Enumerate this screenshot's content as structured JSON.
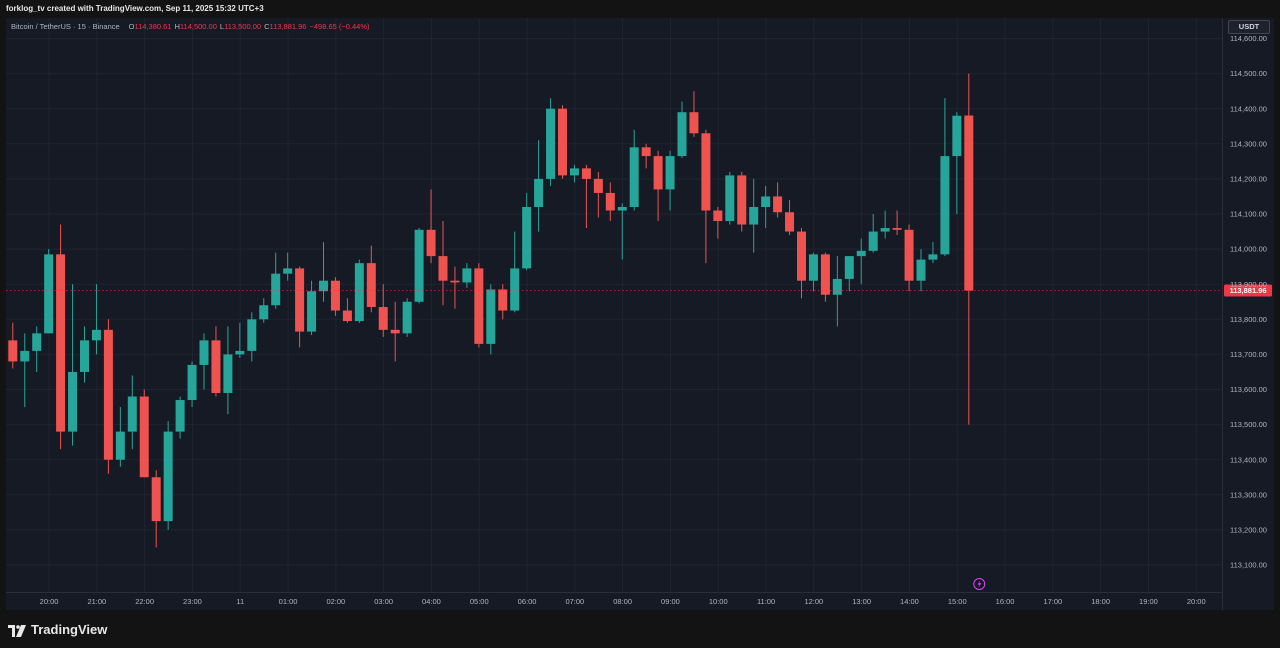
{
  "header": {
    "creator": "forklog_tv created with TradingView.com, Sep 11, 2025 15:32 UTC+3"
  },
  "legend": {
    "symbol": "Bitcoin / TetherUS · 15 · Binance",
    "o_label": "O",
    "o_value": "114,380.61",
    "h_label": "H",
    "h_value": "114,500.00",
    "l_label": "L",
    "l_value": "113,500.00",
    "c_label": "C",
    "c_value": "113,881.96",
    "change": "−498.65 (−0.44%)"
  },
  "currency_label": "USDT",
  "footer": {
    "brand": "TradingView",
    "logo_icon": "tradingview-logo-icon"
  },
  "colors": {
    "up": "#26a69a",
    "down": "#ef5350",
    "background": "#161a25",
    "grid": "#1f2430",
    "text": "#b2b5be",
    "last_price": "#f23645",
    "event_marker": "#e040fb"
  },
  "chart_data": {
    "type": "candlestick",
    "title": "Bitcoin / TetherUS · 15 · Binance",
    "interval": "15",
    "grid": true,
    "y_axis_side": "right",
    "ylim": [
      113050,
      114640
    ],
    "y_ticks": [
      113100,
      113200,
      113300,
      113400,
      113500,
      113600,
      113700,
      113800,
      113900,
      114000,
      114100,
      114200,
      114300,
      114400,
      114500,
      114600
    ],
    "y_tick_labels": [
      "113,100.00",
      "113,200.00",
      "113,300.00",
      "113,400.00",
      "113,500.00",
      "113,600.00",
      "113,700.00",
      "113,800.00",
      "113,900.00",
      "114,000.00",
      "114,100.00",
      "114,200.00",
      "114,300.00",
      "114,400.00",
      "114,500.00",
      "114,600.00"
    ],
    "x_ticks": [
      {
        "label": "20:00",
        "index": 3
      },
      {
        "label": "21:00",
        "index": 7
      },
      {
        "label": "22:00",
        "index": 11
      },
      {
        "label": "23:00",
        "index": 15
      },
      {
        "label": "11",
        "index": 19
      },
      {
        "label": "01:00",
        "index": 23
      },
      {
        "label": "02:00",
        "index": 27
      },
      {
        "label": "03:00",
        "index": 31
      },
      {
        "label": "04:00",
        "index": 35
      },
      {
        "label": "05:00",
        "index": 39
      },
      {
        "label": "06:00",
        "index": 43
      },
      {
        "label": "07:00",
        "index": 47
      },
      {
        "label": "08:00",
        "index": 51
      },
      {
        "label": "09:00",
        "index": 55
      },
      {
        "label": "10:00",
        "index": 59
      },
      {
        "label": "11:00",
        "index": 63
      },
      {
        "label": "12:00",
        "index": 67
      },
      {
        "label": "13:00",
        "index": 71
      },
      {
        "label": "14:00",
        "index": 75
      },
      {
        "label": "15:00",
        "index": 79
      },
      {
        "label": "16:00",
        "index": 83
      },
      {
        "label": "17:00",
        "index": 87
      },
      {
        "label": "18:00",
        "index": 91
      },
      {
        "label": "19:00",
        "index": 95
      },
      {
        "label": "20:00",
        "index": 99
      }
    ],
    "x_slots": 101,
    "first_slot_offset": -0.5,
    "last_price": 113881.96,
    "last_price_label": "113,881.96",
    "event_marker_index": 81,
    "candles": [
      {
        "o": 113740,
        "h": 113790,
        "l": 113660,
        "c": 113680
      },
      {
        "o": 113680,
        "h": 113760,
        "l": 113550,
        "c": 113710
      },
      {
        "o": 113710,
        "h": 113780,
        "l": 113650,
        "c": 113760
      },
      {
        "o": 113760,
        "h": 114000,
        "l": 113760,
        "c": 113985
      },
      {
        "o": 113985,
        "h": 114070,
        "l": 113430,
        "c": 113480
      },
      {
        "o": 113480,
        "h": 113900,
        "l": 113440,
        "c": 113650
      },
      {
        "o": 113650,
        "h": 113780,
        "l": 113620,
        "c": 113740
      },
      {
        "o": 113740,
        "h": 113900,
        "l": 113700,
        "c": 113770
      },
      {
        "o": 113770,
        "h": 113800,
        "l": 113360,
        "c": 113400
      },
      {
        "o": 113400,
        "h": 113550,
        "l": 113380,
        "c": 113480
      },
      {
        "o": 113480,
        "h": 113640,
        "l": 113430,
        "c": 113580
      },
      {
        "o": 113580,
        "h": 113600,
        "l": 113350,
        "c": 113350
      },
      {
        "o": 113350,
        "h": 113370,
        "l": 113150,
        "c": 113225
      },
      {
        "o": 113225,
        "h": 113510,
        "l": 113200,
        "c": 113480
      },
      {
        "o": 113480,
        "h": 113580,
        "l": 113460,
        "c": 113570
      },
      {
        "o": 113570,
        "h": 113680,
        "l": 113550,
        "c": 113670
      },
      {
        "o": 113670,
        "h": 113760,
        "l": 113600,
        "c": 113740
      },
      {
        "o": 113740,
        "h": 113780,
        "l": 113580,
        "c": 113590
      },
      {
        "o": 113590,
        "h": 113780,
        "l": 113530,
        "c": 113700
      },
      {
        "o": 113700,
        "h": 113790,
        "l": 113690,
        "c": 113710
      },
      {
        "o": 113710,
        "h": 113820,
        "l": 113680,
        "c": 113800
      },
      {
        "o": 113800,
        "h": 113860,
        "l": 113790,
        "c": 113840
      },
      {
        "o": 113840,
        "h": 113990,
        "l": 113830,
        "c": 113930
      },
      {
        "o": 113930,
        "h": 113990,
        "l": 113910,
        "c": 113945
      },
      {
        "o": 113945,
        "h": 113950,
        "l": 113720,
        "c": 113765
      },
      {
        "o": 113765,
        "h": 113910,
        "l": 113755,
        "c": 113880
      },
      {
        "o": 113880,
        "h": 114020,
        "l": 113850,
        "c": 113910
      },
      {
        "o": 113910,
        "h": 113920,
        "l": 113810,
        "c": 113825
      },
      {
        "o": 113825,
        "h": 113860,
        "l": 113790,
        "c": 113795
      },
      {
        "o": 113795,
        "h": 113970,
        "l": 113790,
        "c": 113960
      },
      {
        "o": 113960,
        "h": 114010,
        "l": 113820,
        "c": 113835
      },
      {
        "o": 113835,
        "h": 113900,
        "l": 113750,
        "c": 113770
      },
      {
        "o": 113770,
        "h": 113850,
        "l": 113680,
        "c": 113760
      },
      {
        "o": 113760,
        "h": 113860,
        "l": 113750,
        "c": 113850
      },
      {
        "o": 113850,
        "h": 114060,
        "l": 113845,
        "c": 114055
      },
      {
        "o": 114055,
        "h": 114170,
        "l": 113960,
        "c": 113980
      },
      {
        "o": 113980,
        "h": 114080,
        "l": 113840,
        "c": 113910
      },
      {
        "o": 113910,
        "h": 113950,
        "l": 113830,
        "c": 113905
      },
      {
        "o": 113905,
        "h": 113960,
        "l": 113890,
        "c": 113945
      },
      {
        "o": 113945,
        "h": 113960,
        "l": 113720,
        "c": 113730
      },
      {
        "o": 113730,
        "h": 113900,
        "l": 113700,
        "c": 113885
      },
      {
        "o": 113885,
        "h": 113900,
        "l": 113800,
        "c": 113825
      },
      {
        "o": 113825,
        "h": 114050,
        "l": 113820,
        "c": 113945
      },
      {
        "o": 113945,
        "h": 114160,
        "l": 113940,
        "c": 114120
      },
      {
        "o": 114120,
        "h": 114310,
        "l": 114050,
        "c": 114200
      },
      {
        "o": 114200,
        "h": 114430,
        "l": 114180,
        "c": 114400
      },
      {
        "o": 114400,
        "h": 114410,
        "l": 114200,
        "c": 114210
      },
      {
        "o": 114210,
        "h": 114240,
        "l": 114190,
        "c": 114230
      },
      {
        "o": 114230,
        "h": 114240,
        "l": 114060,
        "c": 114200
      },
      {
        "o": 114200,
        "h": 114220,
        "l": 114090,
        "c": 114160
      },
      {
        "o": 114160,
        "h": 114190,
        "l": 114080,
        "c": 114110
      },
      {
        "o": 114110,
        "h": 114130,
        "l": 113970,
        "c": 114120
      },
      {
        "o": 114120,
        "h": 114340,
        "l": 114110,
        "c": 114290
      },
      {
        "o": 114290,
        "h": 114300,
        "l": 114230,
        "c": 114265
      },
      {
        "o": 114265,
        "h": 114280,
        "l": 114080,
        "c": 114170
      },
      {
        "o": 114170,
        "h": 114280,
        "l": 114110,
        "c": 114265
      },
      {
        "o": 114265,
        "h": 114420,
        "l": 114260,
        "c": 114390
      },
      {
        "o": 114390,
        "h": 114450,
        "l": 114320,
        "c": 114330
      },
      {
        "o": 114330,
        "h": 114340,
        "l": 113960,
        "c": 114110
      },
      {
        "o": 114110,
        "h": 114120,
        "l": 114030,
        "c": 114080
      },
      {
        "o": 114080,
        "h": 114220,
        "l": 114070,
        "c": 114210
      },
      {
        "o": 114210,
        "h": 114220,
        "l": 114050,
        "c": 114070
      },
      {
        "o": 114070,
        "h": 114200,
        "l": 113990,
        "c": 114120
      },
      {
        "o": 114120,
        "h": 114180,
        "l": 114060,
        "c": 114150
      },
      {
        "o": 114150,
        "h": 114190,
        "l": 114090,
        "c": 114105
      },
      {
        "o": 114105,
        "h": 114140,
        "l": 114040,
        "c": 114050
      },
      {
        "o": 114050,
        "h": 114060,
        "l": 113860,
        "c": 113910
      },
      {
        "o": 113910,
        "h": 113990,
        "l": 113880,
        "c": 113985
      },
      {
        "o": 113985,
        "h": 113990,
        "l": 113850,
        "c": 113870
      },
      {
        "o": 113870,
        "h": 113980,
        "l": 113780,
        "c": 113915
      },
      {
        "o": 113915,
        "h": 113980,
        "l": 113880,
        "c": 113980
      },
      {
        "o": 113980,
        "h": 114030,
        "l": 113900,
        "c": 113995
      },
      {
        "o": 113995,
        "h": 114100,
        "l": 113990,
        "c": 114050
      },
      {
        "o": 114050,
        "h": 114110,
        "l": 114030,
        "c": 114060
      },
      {
        "o": 114060,
        "h": 114110,
        "l": 114040,
        "c": 114055
      },
      {
        "o": 114055,
        "h": 114070,
        "l": 113880,
        "c": 113910
      },
      {
        "o": 113910,
        "h": 114000,
        "l": 113880,
        "c": 113970
      },
      {
        "o": 113970,
        "h": 114020,
        "l": 113960,
        "c": 113985
      },
      {
        "o": 113985,
        "h": 114430,
        "l": 113980,
        "c": 114265
      },
      {
        "o": 114265,
        "h": 114390,
        "l": 114100,
        "c": 114380
      },
      {
        "o": 114380.61,
        "h": 114500,
        "l": 113500,
        "c": 113881.96
      }
    ]
  }
}
